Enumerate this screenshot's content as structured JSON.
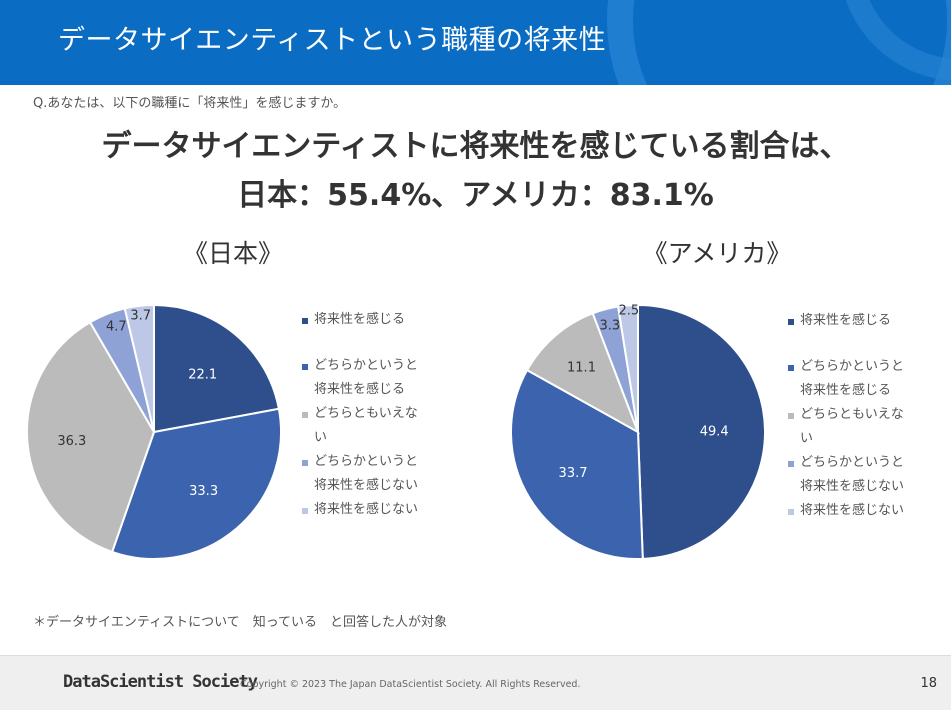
{
  "header": {
    "title": "データサイエンティストという職種の将来性"
  },
  "question": "Q.あなたは、以下の職種に「将来性」を感じますか。",
  "headline": {
    "line1": "データサイエンティストに将来性を感じている割合は、",
    "line2": "日本：55.4%、アメリカ：83.1%"
  },
  "legend": {
    "items": [
      {
        "lines": [
          "将来性を感じる"
        ]
      },
      {
        "lines": [
          "どちらかというと",
          "将来性を感じる"
        ]
      },
      {
        "lines": [
          "どちらともいえな",
          "い"
        ]
      },
      {
        "lines": [
          "どちらかというと",
          "将来性を感じない"
        ]
      },
      {
        "lines": [
          "将来性を感じない"
        ]
      }
    ]
  },
  "colors": [
    "#2e4f8c",
    "#3c63ae",
    "#bbbbbb",
    "#8ea2d6",
    "#bcc8e6"
  ],
  "label_colors": [
    "#ffffff",
    "#ffffff",
    "#333333",
    "#333333",
    "#333333"
  ],
  "chart_data": [
    {
      "type": "pie",
      "title": "《日本》",
      "categories": [
        "将来性を感じる",
        "どちらかというと将来性を感じる",
        "どちらともいえない",
        "どちらかというと将来性を感じない",
        "将来性を感じない"
      ],
      "values": [
        22.1,
        33.3,
        36.3,
        4.7,
        3.7
      ],
      "value_labels": [
        "22.1",
        "33.3",
        "36.3",
        "4.7",
        "3.7"
      ],
      "legend": "right"
    },
    {
      "type": "pie",
      "title": "《アメリカ》",
      "categories": [
        "将来性を感じる",
        "どちらかというと将来性を感じる",
        "どちらともいえない",
        "どちらかというと将来性を感じない",
        "将来性を感じない"
      ],
      "values": [
        49.4,
        33.7,
        11.1,
        3.3,
        2.5
      ],
      "value_labels": [
        "49.4",
        "33.7",
        "11.1",
        "3.3",
        "2.5"
      ],
      "legend": "right"
    }
  ],
  "footnote": "＊データサイエンティストについて　知っている　と回答した人が対象",
  "footer": {
    "brand": "DataScientist Society",
    "copyright": "Copyright © 2023 The Japan DataScientist Society. All Rights Reserved.",
    "page_number": "18"
  }
}
